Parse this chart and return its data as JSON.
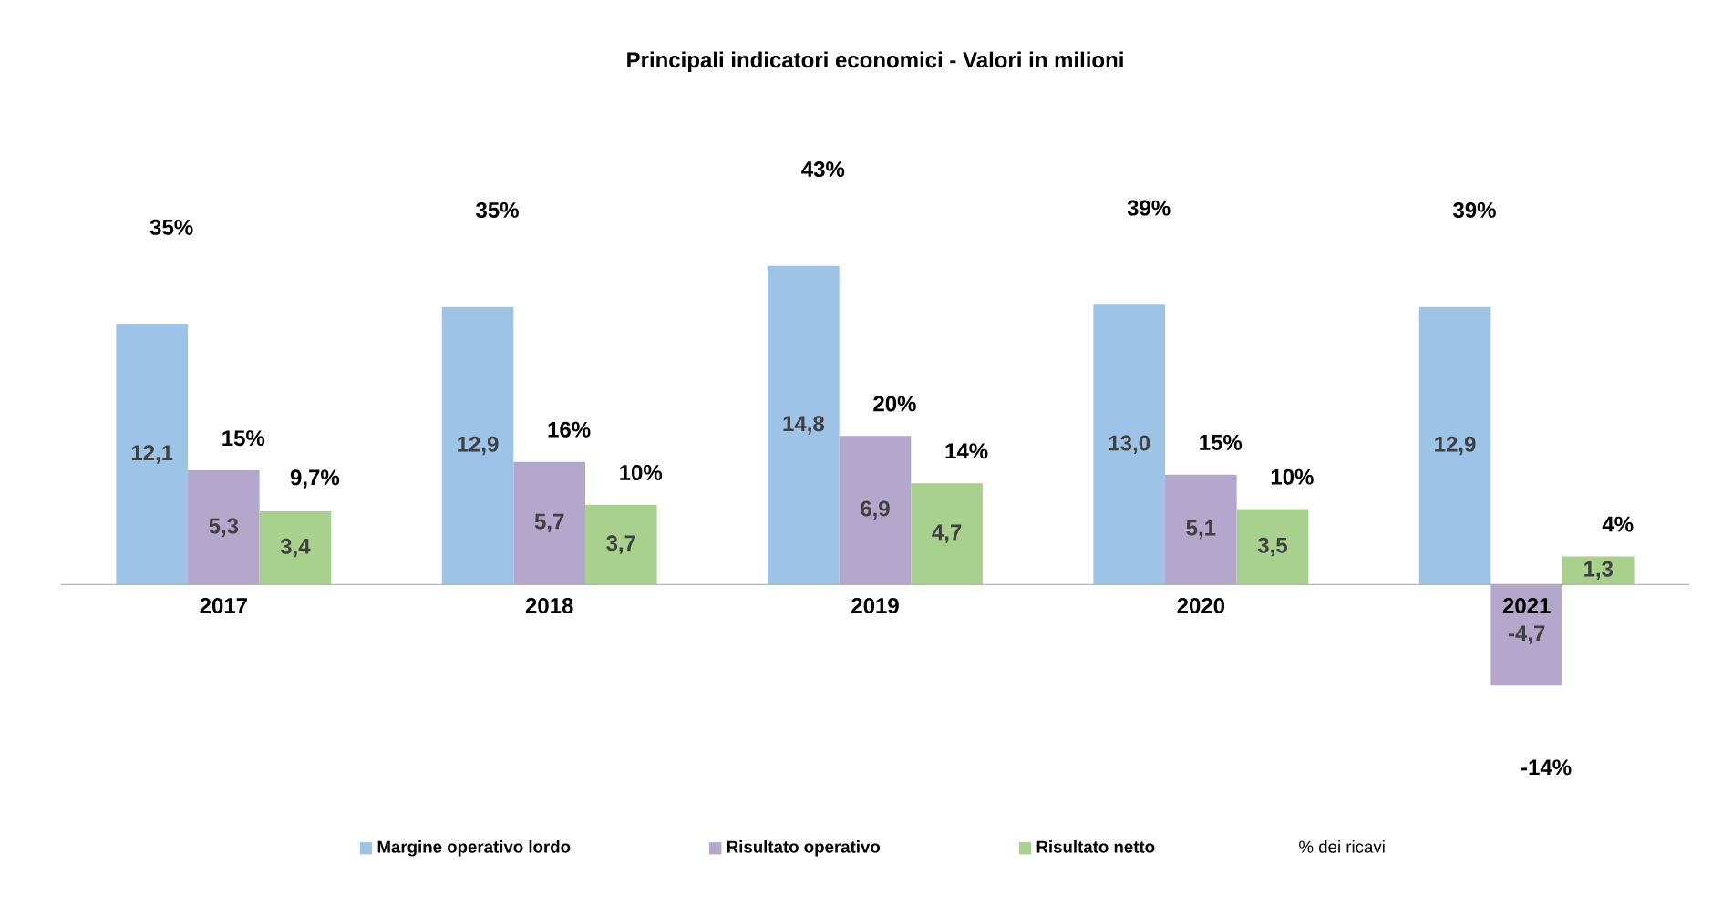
{
  "chart_data": {
    "type": "bar",
    "title": "Principali indicatori economici - Valori in milioni",
    "categories": [
      "2017",
      "2018",
      "2019",
      "2020",
      "2021"
    ],
    "series": [
      {
        "name": "Margine operativo lordo",
        "color": "#9dc3e6",
        "values": [
          12.1,
          12.9,
          14.8,
          13.0,
          12.9
        ],
        "value_labels": [
          "12,1",
          "12,9",
          "14,8",
          "13,0",
          "12,9"
        ]
      },
      {
        "name": "Risultato operativo",
        "color": "#b4a7cc",
        "values": [
          5.3,
          5.7,
          6.9,
          5.1,
          -4.7
        ],
        "value_labels": [
          "5,3",
          "5,7",
          "6,9",
          "5,1",
          "-4,7"
        ]
      },
      {
        "name": "Risultato netto",
        "color": "#a9d18e",
        "values": [
          3.4,
          3.7,
          4.7,
          3.5,
          1.3
        ],
        "value_labels": [
          "3,4",
          "3,7",
          "4,7",
          "3,5",
          "1,3"
        ]
      }
    ],
    "annotations": [
      "35%",
      "15%",
      "9,7%",
      "35%",
      "16%",
      "10%",
      "43%",
      "20%",
      "14%",
      "39%",
      "15%",
      "10%",
      "39%",
      "-14%",
      "4%",
      "% dei ricavi"
    ],
    "legend": "bottom"
  }
}
